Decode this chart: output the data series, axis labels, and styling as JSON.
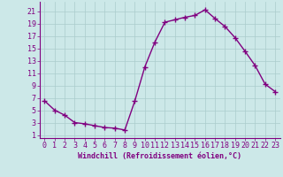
{
  "x": [
    0,
    1,
    2,
    3,
    4,
    5,
    6,
    7,
    8,
    9,
    10,
    11,
    12,
    13,
    14,
    15,
    16,
    17,
    18,
    19,
    20,
    21,
    22,
    23
  ],
  "y": [
    6.5,
    5.0,
    4.2,
    3.0,
    2.8,
    2.5,
    2.2,
    2.1,
    1.8,
    6.5,
    12.0,
    16.0,
    19.2,
    19.6,
    20.0,
    20.3,
    21.2,
    19.8,
    18.5,
    16.7,
    14.5,
    12.2,
    9.2,
    8.0
  ],
  "line_color": "#800080",
  "marker": "+",
  "marker_size": 4,
  "line_width": 1.0,
  "bg_color": "#cce8e8",
  "grid_color": "#aacccc",
  "xlabel": "Windchill (Refroidissement éolien,°C)",
  "xlabel_color": "#800080",
  "tick_color": "#800080",
  "spine_color": "#800080",
  "yticks": [
    1,
    3,
    5,
    7,
    9,
    11,
    13,
    15,
    17,
    19,
    21
  ],
  "xticks": [
    0,
    1,
    2,
    3,
    4,
    5,
    6,
    7,
    8,
    9,
    10,
    11,
    12,
    13,
    14,
    15,
    16,
    17,
    18,
    19,
    20,
    21,
    22,
    23
  ],
  "ylim": [
    0.5,
    22.5
  ],
  "xlim": [
    -0.5,
    23.5
  ],
  "tick_fontsize": 6,
  "xlabel_fontsize": 6
}
